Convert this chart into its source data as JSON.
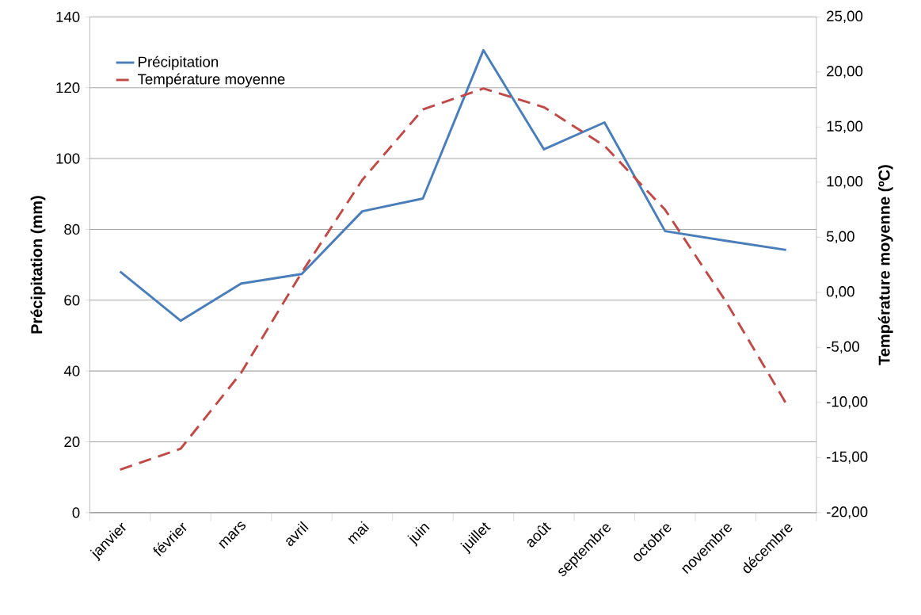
{
  "chart_data": {
    "type": "line",
    "xlabel": null,
    "ylabel": "Précipitation (mm)",
    "y2label": "Température moyenne (ºC)",
    "categories": [
      "janvier",
      "février",
      "mars",
      "avril",
      "mai",
      "juin",
      "juillet",
      "août",
      "septembre",
      "octobre",
      "novembre",
      "décembre"
    ],
    "series": [
      {
        "name": "Précipitation",
        "color": "#4a7ebb",
        "line_style": "solid",
        "values": [
          68.1,
          54.2,
          64.7,
          67.4,
          85.1,
          88.7,
          130.6,
          102.6,
          110.2,
          79.5,
          76.8,
          74.2
        ]
      },
      {
        "name": "Température moyenne",
        "color": "#be4b48",
        "line_style": "dashed",
        "axis": "y2",
        "values": [
          -16.1,
          -14.2,
          -7.3,
          1.8,
          10.2,
          16.6,
          18.5,
          16.8,
          13.3,
          7.5,
          -0.8,
          -10.1
        ]
      }
    ],
    "ylim": [
      0,
      140
    ],
    "yticks": [
      0,
      20,
      40,
      60,
      80,
      100,
      120,
      140
    ],
    "y2lim": [
      -20,
      25
    ],
    "y2ticks": [
      {
        "value": -20,
        "label": "-20,00"
      },
      {
        "value": -15,
        "label": "-15,00"
      },
      {
        "value": -10,
        "label": "-10,00"
      },
      {
        "value": -5,
        "label": "-5,00"
      },
      {
        "value": 0,
        "label": "0,00"
      },
      {
        "value": 5,
        "label": "5,00"
      },
      {
        "value": 10,
        "label": "10,00"
      },
      {
        "value": 15,
        "label": "15,00"
      },
      {
        "value": 20,
        "label": "20,00"
      },
      {
        "value": 25,
        "label": "25,00"
      }
    ],
    "grid": "y",
    "legend": "top left",
    "marker": "none"
  }
}
